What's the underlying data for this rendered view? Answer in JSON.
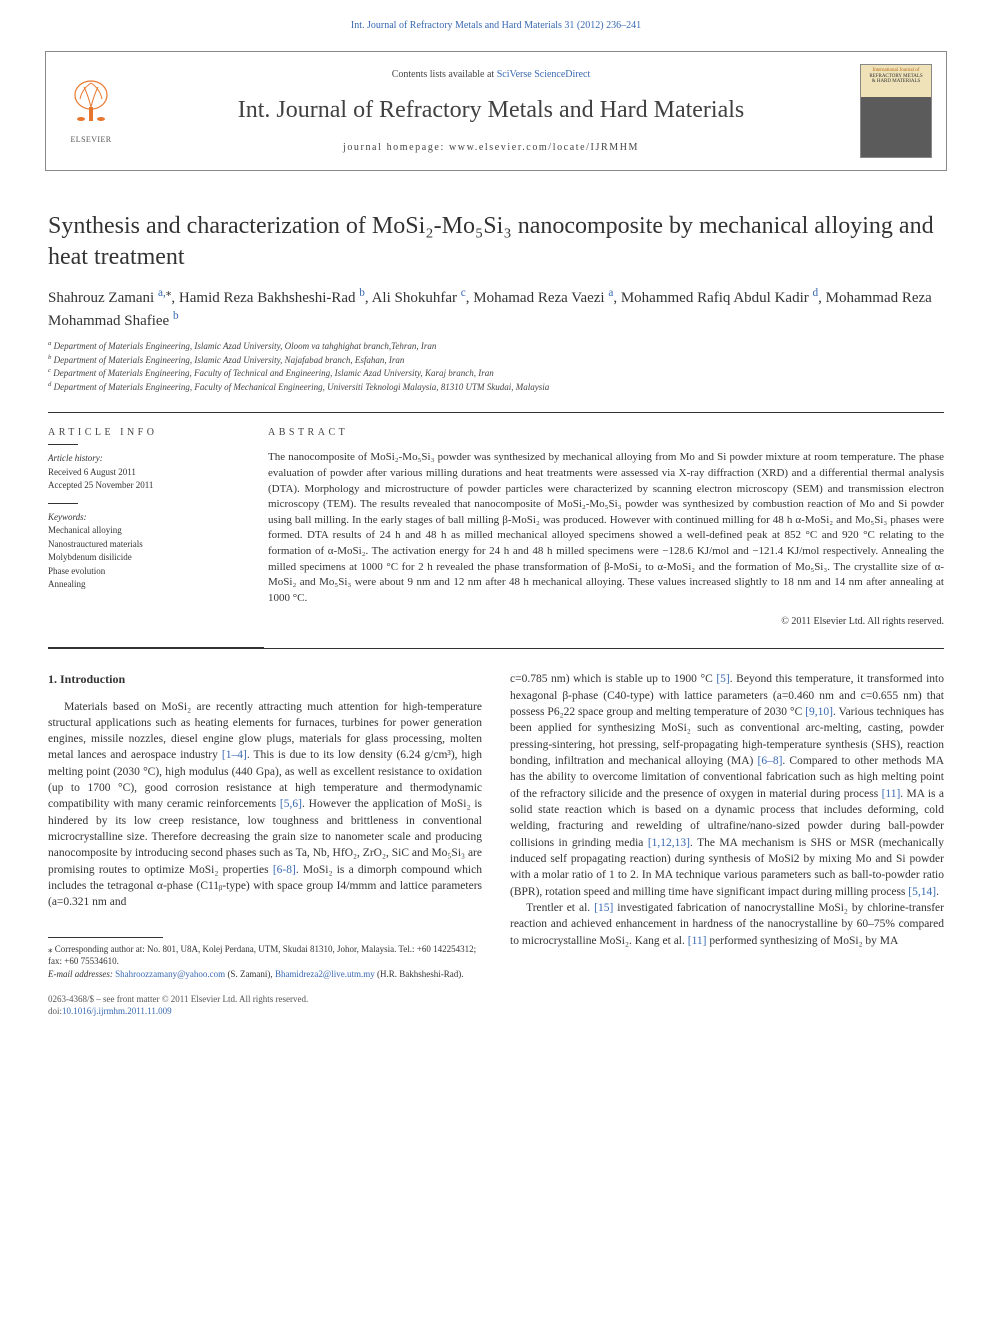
{
  "topLink": "Int. Journal of Refractory Metals and Hard Materials 31 (2012) 236–241",
  "header": {
    "elsevierLabel": "ELSEVIER",
    "contentsPrefix": "Contents lists available at ",
    "contentsLink": "SciVerse ScienceDirect",
    "journalTitle": "Int. Journal of Refractory Metals and Hard Materials",
    "homepagePrefix": "journal homepage: ",
    "homepageUrl": "www.elsevier.com/locate/IJRMHM",
    "coverTitleL1": "International Journal of",
    "coverTitleL2": "REFRACTORY METALS",
    "coverTitleL3": "& HARD MATERIALS"
  },
  "article": {
    "title": "Synthesis and characterization of MoSi₂-Mo₅Si₃ nanocomposite by mechanical alloying and heat treatment",
    "authors": [
      {
        "name": "Shahrouz Zamani ",
        "sup": "a,",
        "mark": "⁎"
      },
      {
        "name": ", Hamid Reza Bakhsheshi-Rad ",
        "sup": "b"
      },
      {
        "name": ", Ali Shokuhfar ",
        "sup": "c"
      },
      {
        "name": ", Mohamad Reza Vaezi ",
        "sup": "a"
      },
      {
        "name": ", Mohammed Rafiq Abdul Kadir ",
        "sup": "d"
      },
      {
        "name": ", Mohammad Reza Mohammad Shafiee ",
        "sup": "b"
      }
    ],
    "affiliations": [
      {
        "sup": "a",
        "text": " Department of Materials Engineering, Islamic Azad University, Oloom va tahghighat branch,Tehran, Iran"
      },
      {
        "sup": "b",
        "text": " Department of Materials Engineering, Islamic Azad University, Najafabad branch, Esfahan, Iran"
      },
      {
        "sup": "c",
        "text": " Department of Materials Engineering, Faculty of Technical and Engineering, Islamic Azad University, Karaj branch, Iran"
      },
      {
        "sup": "d",
        "text": " Department of Materials Engineering, Faculty of Mechanical Engineering, Universiti Teknologi Malaysia, 81310 UTM Skudai, Malaysia"
      }
    ]
  },
  "info": {
    "heading": "ARTICLE INFO",
    "historyLabel": "Article history:",
    "received": "Received 6 August 2011",
    "accepted": "Accepted 25 November 2011",
    "keywordsLabel": "Keywords:",
    "keywords": [
      "Mechanical alloying",
      "Nanostrauctured materials",
      "Molybdenum disilicide",
      "Phase evolution",
      "Annealing"
    ]
  },
  "abstract": {
    "heading": "ABSTRACT",
    "text": "The nanocomposite of MoSi₂-Mo₅Si₃ powder was synthesized by mechanical alloying from Mo and Si powder mixture at room temperature. The phase evaluation of powder after various milling durations and heat treatments were assessed via X-ray diffraction (XRD) and a differential thermal analysis (DTA). Morphology and microstructure of powder particles were characterized by scanning electron microscopy (SEM) and transmission electron microscopy (TEM). The results revealed that nanocomposite of MoSi₂-Mo₅Si₃ powder was synthesized by combustion reaction of Mo and Si powder using ball milling. In the early stages of ball milling β-MoSi₂ was produced. However with continued milling for 48 h α-MoSi₂ and Mo₅Si₃ phases were formed. DTA results of 24 h and 48 h as milled mechanical alloyed specimens showed a well-defined peak at 852 °C and 920 °C relating to the formation of α-MoSi₂. The activation energy for 24 h and 48 h milled specimens were −128.6 KJ/mol and −121.4 KJ/mol respectively. Annealing the milled specimens at 1000 °C for 2 h revealed the phase transformation of β-MoSi₂ to α-MoSi₂ and the formation of Mo₅Si₃. The crystallite size of α-MoSi₂ and Mo₅Si₃ were about 9 nm and 12 nm after 48 h mechanical alloying. These values increased slightly to 18 nm and 14 nm after annealing at 1000 °C.",
    "copyright": "© 2011 Elsevier Ltd. All rights reserved."
  },
  "intro": {
    "heading": "1. Introduction",
    "col1": {
      "seg1": "Materials based on MoSi₂ are recently attracting much attention for high-temperature structural applications such as heating elements for furnaces, turbines for power generation engines, missile nozzles, diesel engine glow plugs, materials for glass processing, molten metal lances and aerospace industry ",
      "ref1": "[1–4]",
      "seg2": ". This is due to its low density (6.24 g/cm³), high melting point (2030 °C), high modulus (440 Gpa), as well as excellent resistance to oxidation (up to 1700 °C), good corrosion resistance at high temperature and thermodynamic compatibility with many ceramic reinforcements ",
      "ref2": "[5,6]",
      "seg3": ". However the application of MoSi₂ is hindered by its low creep resistance, low toughness and brittleness in conventional microcrystalline size. Therefore decreasing the grain size to nanometer scale and producing nanocomposite by introducing second phases such as Ta, Nb, HfO₂, ZrO₂, SiC and Mo₅Si₃ are promising routes to optimize MoSi₂ properties ",
      "ref3": "[6-8]",
      "seg4": ". MoSi₂ is a dimorph compound which includes the tetragonal α-phase (C11ᵦ-type) with space group I4/mmm and lattice parameters (a=0.321 nm and"
    },
    "col2": {
      "seg1": "c=0.785 nm) which is stable up to 1900 °C ",
      "ref1": "[5]",
      "seg2": ". Beyond this temperature, it transformed into hexagonal β-phase (C40-type) with lattice parameters (a=0.460 nm and c=0.655 nm) that possess P6₂22 space group and melting temperature of 2030 °C ",
      "ref2": "[9,10]",
      "seg3": ". Various techniques has been applied for synthesizing MoSi₂ such as conventional arc-melting, casting, powder pressing-sintering, hot pressing, self-propagating high-temperature synthesis (SHS), reaction bonding, infiltration and mechanical alloying (MA) ",
      "ref3": "[6–8]",
      "seg4": ". Compared to other methods MA has the ability to overcome limitation of conventional fabrication such as high melting point of the refractory silicide and the presence of oxygen in material during process ",
      "ref4": "[11]",
      "seg5": ". MA is a solid state reaction which is based on a dynamic process that includes deforming, cold welding, fracturing and rewelding of ultrafine/nano-sized powder during ball-powder collisions in grinding media ",
      "ref5": "[1,12,13]",
      "seg6": ". The MA mechanism is SHS or MSR (mechanically induced self propagating reaction) during synthesis of MoSi2 by mixing Mo and Si powder with a molar ratio of 1 to 2. In MA technique various parameters such as ball-to-powder ratio (BPR), rotation speed and milling time have significant impact during milling process ",
      "ref6": "[5,14]",
      "seg7": ".",
      "p2seg1": "Trentler et al. ",
      "p2ref1": "[15]",
      "p2seg2": " investigated fabrication of nanocrystalline MoSi₂ by chlorine-transfer reaction and achieved enhancement in hardness of the nanocrystalline by 60–75% compared to microcrystalline MoSi₂. Kang et al. ",
      "p2ref2": "[11]",
      "p2seg3": " performed synthesizing of MoSi₂ by MA"
    }
  },
  "footnote": {
    "corrLine": "⁎ Corresponding author at: No. 801, U8A, Kolej Perdana, UTM, Skudai 81310, Johor, Malaysia. Tel.: +60 142254312; fax: +60 75534610.",
    "emailLabel": "E-mail addresses: ",
    "email1": "Shahroozzamany@yahoo.com",
    "email1tail": " (S. Zamani), ",
    "email2": "Bhamidreza2@live.utm.my",
    "email2tail": " (H.R. Bakhsheshi-Rad)."
  },
  "bottom": {
    "line1": "0263-4368/$ – see front matter © 2011 Elsevier Ltd. All rights reserved.",
    "doiLabel": "doi:",
    "doi": "10.1016/j.ijrmhm.2011.11.009"
  },
  "colors": {
    "link": "#3969b1",
    "elsevier": "#e8772e"
  }
}
